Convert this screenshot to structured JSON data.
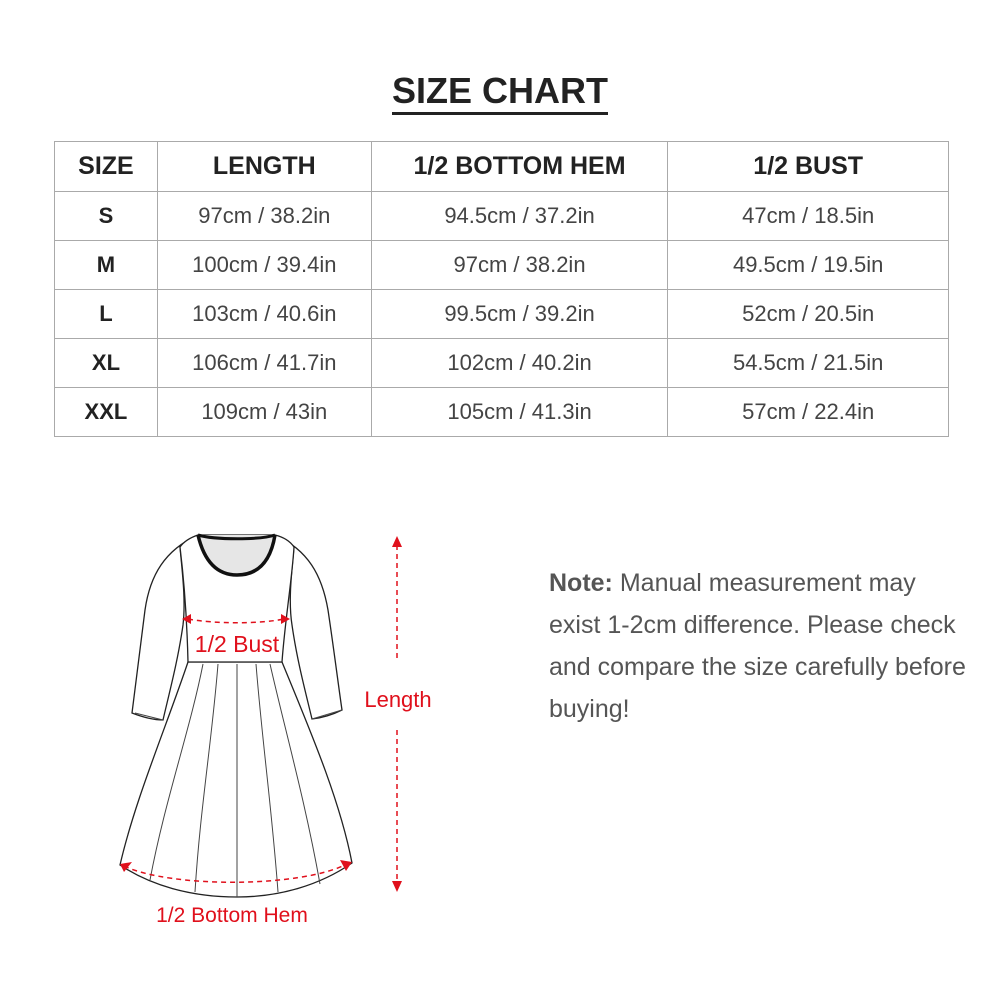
{
  "title": "SIZE CHART",
  "table": {
    "headers": [
      "SIZE",
      "LENGTH",
      "1/2 BOTTOM HEM",
      "1/2 BUST"
    ],
    "rows": [
      [
        "S",
        "97cm / 38.2in",
        "94.5cm / 37.2in",
        "47cm / 18.5in"
      ],
      [
        "M",
        "100cm / 39.4in",
        "97cm / 38.2in",
        "49.5cm / 19.5in"
      ],
      [
        "L",
        "103cm / 40.6in",
        "99.5cm / 39.2in",
        "52cm / 20.5in"
      ],
      [
        "XL",
        "106cm / 41.7in",
        "102cm / 40.2in",
        "54.5cm / 21.5in"
      ],
      [
        "XXL",
        "109cm / 43in",
        "105cm / 41.3in",
        "57cm / 22.4in"
      ]
    ]
  },
  "diagram": {
    "bust_label": "1/2 Bust",
    "length_label": "Length",
    "hem_label": "1/2 Bottom Hem",
    "accent_color": "#e0101c"
  },
  "note": {
    "label": "Note:",
    "text": "Manual measurement may exist 1-2cm difference. Please check and compare the size carefully before buying!"
  }
}
